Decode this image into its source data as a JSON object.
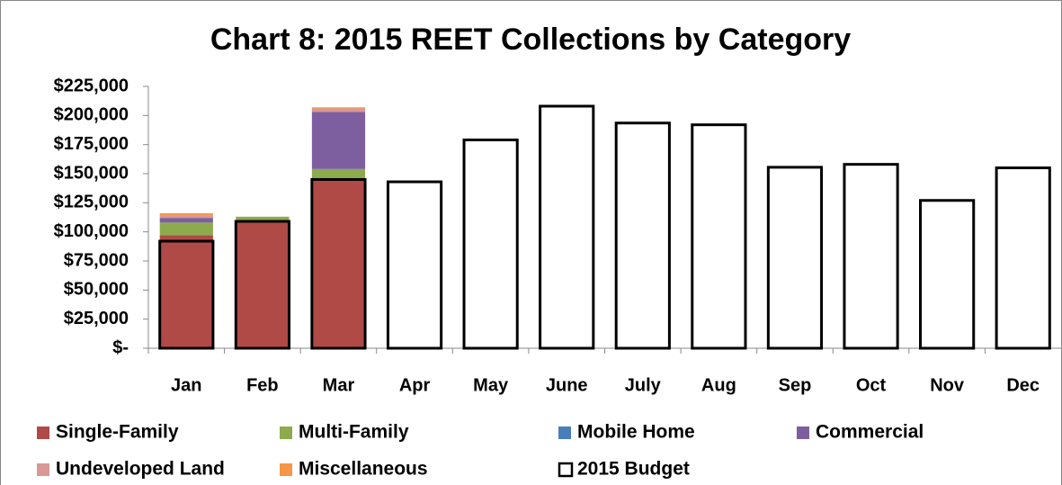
{
  "chart_data": {
    "type": "bar",
    "title": "Chart 8: 2015 REET Collections by Category",
    "categories": [
      "Jan",
      "Feb",
      "Mar",
      "Apr",
      "May",
      "June",
      "July",
      "Aug",
      "Sep",
      "Oct",
      "Nov",
      "Dec"
    ],
    "series": [
      {
        "name": "Single-Family",
        "color": "#b04a47",
        "values": [
          97000,
          109000,
          145000,
          null,
          null,
          null,
          null,
          null,
          null,
          null,
          null,
          null
        ]
      },
      {
        "name": "Multi-Family",
        "color": "#8daa4d",
        "values": [
          11000,
          4000,
          9000,
          null,
          null,
          null,
          null,
          null,
          null,
          null,
          null,
          null
        ]
      },
      {
        "name": "Mobile Home",
        "color": "#4a7ebb",
        "values": [
          0,
          0,
          0,
          null,
          null,
          null,
          null,
          null,
          null,
          null,
          null,
          null
        ]
      },
      {
        "name": "Commercial",
        "color": "#7d5fa0",
        "values": [
          4000,
          0,
          49000,
          null,
          null,
          null,
          null,
          null,
          null,
          null,
          null,
          null
        ]
      },
      {
        "name": "Undeveloped Land",
        "color": "#d99795",
        "values": [
          2000,
          0,
          3000,
          null,
          null,
          null,
          null,
          null,
          null,
          null,
          null,
          null
        ]
      },
      {
        "name": "Miscellaneous",
        "color": "#f79646",
        "values": [
          2000,
          0,
          1000,
          null,
          null,
          null,
          null,
          null,
          null,
          null,
          null,
          null
        ]
      }
    ],
    "budget": {
      "name": "2015 Budget",
      "color": "#000000",
      "values": [
        92000,
        109000,
        145000,
        143000,
        179000,
        208000,
        193500,
        192000,
        155500,
        158000,
        127000,
        155000
      ]
    },
    "stacked": true,
    "ylim": [
      0,
      225000
    ],
    "yticks": [
      {
        "value": 0,
        "label": "$-"
      },
      {
        "value": 25000,
        "label": "$25,000"
      },
      {
        "value": 50000,
        "label": "$50,000"
      },
      {
        "value": 75000,
        "label": "$75,000"
      },
      {
        "value": 100000,
        "label": "$100,000"
      },
      {
        "value": 125000,
        "label": "$125,000"
      },
      {
        "value": 150000,
        "label": "$150,000"
      },
      {
        "value": 175000,
        "label": "$175,000"
      },
      {
        "value": 200000,
        "label": "$200,000"
      },
      {
        "value": 225000,
        "label": "$225,000"
      }
    ],
    "grid": false
  }
}
